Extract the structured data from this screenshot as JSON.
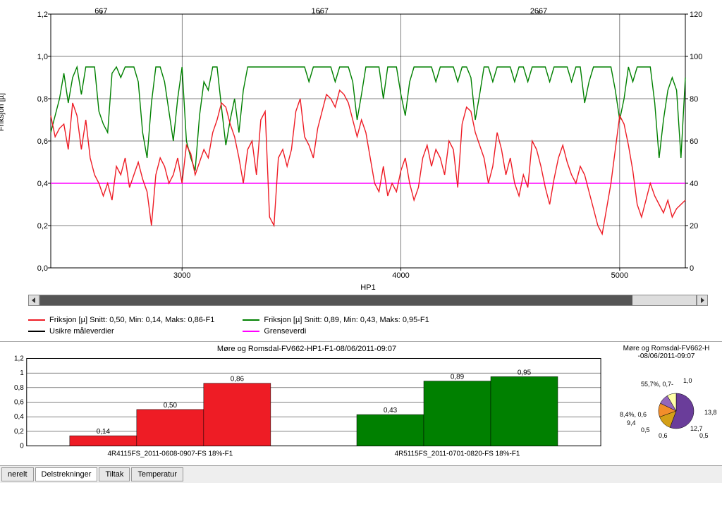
{
  "main_chart": {
    "y_left_label": "Friksjon [µ]",
    "y_left": {
      "min": 0.0,
      "max": 1.2,
      "ticks": [
        0.0,
        0.2,
        0.4,
        0.6,
        0.8,
        1.0,
        1.2
      ],
      "labels": [
        "0,0",
        "0,2",
        "0,4",
        "0,6",
        "0,8",
        "1,0",
        "1,2"
      ]
    },
    "y_right": {
      "min": 0,
      "max": 120,
      "ticks": [
        0,
        20,
        40,
        60,
        80,
        100,
        120
      ],
      "labels": [
        "0",
        "20",
        "40",
        "60",
        "80",
        "100",
        "120"
      ]
    },
    "x_bottom": {
      "min": 2400,
      "max": 5300,
      "ticks": [
        3000,
        4000,
        5000
      ],
      "labels": [
        "3000",
        "4000",
        "5000"
      ]
    },
    "x_top": {
      "ticks": [
        667,
        1667,
        2667
      ],
      "positions": [
        2630,
        3630,
        4630
      ],
      "labels": [
        "667",
        "1667",
        "2667"
      ]
    },
    "hp_label": "HP1",
    "threshold": {
      "value": 0.4,
      "color": "#ff00ff"
    },
    "colors": {
      "grid": "#000000",
      "red": "#ee1c25",
      "green": "#008000",
      "black": "#000000",
      "magenta": "#ff00ff",
      "bg": "#ffffff"
    },
    "red_series": [
      [
        2400,
        0.72
      ],
      [
        2420,
        0.62
      ],
      [
        2440,
        0.66
      ],
      [
        2460,
        0.68
      ],
      [
        2480,
        0.56
      ],
      [
        2500,
        0.78
      ],
      [
        2520,
        0.72
      ],
      [
        2540,
        0.56
      ],
      [
        2560,
        0.7
      ],
      [
        2580,
        0.52
      ],
      [
        2600,
        0.44
      ],
      [
        2620,
        0.4
      ],
      [
        2640,
        0.34
      ],
      [
        2660,
        0.4
      ],
      [
        2680,
        0.32
      ],
      [
        2700,
        0.48
      ],
      [
        2720,
        0.44
      ],
      [
        2740,
        0.52
      ],
      [
        2760,
        0.38
      ],
      [
        2780,
        0.44
      ],
      [
        2800,
        0.5
      ],
      [
        2820,
        0.42
      ],
      [
        2840,
        0.36
      ],
      [
        2860,
        0.2
      ],
      [
        2880,
        0.44
      ],
      [
        2900,
        0.52
      ],
      [
        2920,
        0.48
      ],
      [
        2940,
        0.4
      ],
      [
        2960,
        0.44
      ],
      [
        2980,
        0.52
      ],
      [
        3000,
        0.4
      ],
      [
        3020,
        0.58
      ],
      [
        3040,
        0.54
      ],
      [
        3060,
        0.44
      ],
      [
        3080,
        0.5
      ],
      [
        3100,
        0.56
      ],
      [
        3120,
        0.52
      ],
      [
        3140,
        0.64
      ],
      [
        3160,
        0.7
      ],
      [
        3180,
        0.78
      ],
      [
        3200,
        0.76
      ],
      [
        3220,
        0.68
      ],
      [
        3240,
        0.62
      ],
      [
        3260,
        0.52
      ],
      [
        3280,
        0.4
      ],
      [
        3300,
        0.56
      ],
      [
        3320,
        0.6
      ],
      [
        3340,
        0.44
      ],
      [
        3360,
        0.7
      ],
      [
        3380,
        0.74
      ],
      [
        3400,
        0.24
      ],
      [
        3420,
        0.2
      ],
      [
        3440,
        0.52
      ],
      [
        3460,
        0.56
      ],
      [
        3480,
        0.48
      ],
      [
        3500,
        0.56
      ],
      [
        3520,
        0.74
      ],
      [
        3540,
        0.8
      ],
      [
        3560,
        0.62
      ],
      [
        3580,
        0.58
      ],
      [
        3600,
        0.52
      ],
      [
        3620,
        0.66
      ],
      [
        3640,
        0.74
      ],
      [
        3660,
        0.82
      ],
      [
        3680,
        0.8
      ],
      [
        3700,
        0.76
      ],
      [
        3720,
        0.84
      ],
      [
        3740,
        0.82
      ],
      [
        3760,
        0.78
      ],
      [
        3780,
        0.7
      ],
      [
        3800,
        0.62
      ],
      [
        3820,
        0.7
      ],
      [
        3840,
        0.64
      ],
      [
        3860,
        0.52
      ],
      [
        3880,
        0.4
      ],
      [
        3900,
        0.36
      ],
      [
        3920,
        0.48
      ],
      [
        3940,
        0.34
      ],
      [
        3960,
        0.4
      ],
      [
        3980,
        0.36
      ],
      [
        4000,
        0.46
      ],
      [
        4020,
        0.52
      ],
      [
        4040,
        0.4
      ],
      [
        4060,
        0.32
      ],
      [
        4080,
        0.38
      ],
      [
        4100,
        0.52
      ],
      [
        4120,
        0.58
      ],
      [
        4140,
        0.48
      ],
      [
        4160,
        0.56
      ],
      [
        4180,
        0.52
      ],
      [
        4200,
        0.44
      ],
      [
        4220,
        0.6
      ],
      [
        4240,
        0.56
      ],
      [
        4260,
        0.38
      ],
      [
        4280,
        0.68
      ],
      [
        4300,
        0.76
      ],
      [
        4320,
        0.74
      ],
      [
        4340,
        0.64
      ],
      [
        4360,
        0.58
      ],
      [
        4380,
        0.52
      ],
      [
        4400,
        0.4
      ],
      [
        4420,
        0.48
      ],
      [
        4440,
        0.64
      ],
      [
        4460,
        0.56
      ],
      [
        4480,
        0.44
      ],
      [
        4500,
        0.52
      ],
      [
        4520,
        0.4
      ],
      [
        4540,
        0.34
      ],
      [
        4560,
        0.44
      ],
      [
        4580,
        0.38
      ],
      [
        4600,
        0.6
      ],
      [
        4620,
        0.56
      ],
      [
        4640,
        0.48
      ],
      [
        4660,
        0.38
      ],
      [
        4680,
        0.3
      ],
      [
        4700,
        0.42
      ],
      [
        4720,
        0.52
      ],
      [
        4740,
        0.58
      ],
      [
        4760,
        0.5
      ],
      [
        4780,
        0.44
      ],
      [
        4800,
        0.4
      ],
      [
        4820,
        0.48
      ],
      [
        4840,
        0.44
      ],
      [
        4860,
        0.36
      ],
      [
        4880,
        0.28
      ],
      [
        4900,
        0.2
      ],
      [
        4920,
        0.16
      ],
      [
        4940,
        0.28
      ],
      [
        4960,
        0.4
      ],
      [
        4980,
        0.56
      ],
      [
        5000,
        0.72
      ],
      [
        5020,
        0.68
      ],
      [
        5040,
        0.58
      ],
      [
        5060,
        0.46
      ],
      [
        5080,
        0.3
      ],
      [
        5100,
        0.24
      ],
      [
        5120,
        0.32
      ],
      [
        5140,
        0.4
      ],
      [
        5160,
        0.34
      ],
      [
        5180,
        0.3
      ],
      [
        5200,
        0.26
      ],
      [
        5220,
        0.32
      ],
      [
        5240,
        0.24
      ],
      [
        5260,
        0.28
      ],
      [
        5280,
        0.3
      ],
      [
        5300,
        0.32
      ]
    ],
    "green_series": [
      [
        2400,
        0.64
      ],
      [
        2420,
        0.72
      ],
      [
        2440,
        0.8
      ],
      [
        2460,
        0.92
      ],
      [
        2480,
        0.78
      ],
      [
        2500,
        0.9
      ],
      [
        2520,
        0.95
      ],
      [
        2540,
        0.82
      ],
      [
        2560,
        0.95
      ],
      [
        2580,
        0.95
      ],
      [
        2600,
        0.95
      ],
      [
        2620,
        0.74
      ],
      [
        2640,
        0.68
      ],
      [
        2660,
        0.64
      ],
      [
        2680,
        0.92
      ],
      [
        2700,
        0.95
      ],
      [
        2720,
        0.9
      ],
      [
        2740,
        0.95
      ],
      [
        2760,
        0.95
      ],
      [
        2780,
        0.95
      ],
      [
        2800,
        0.88
      ],
      [
        2820,
        0.64
      ],
      [
        2840,
        0.52
      ],
      [
        2860,
        0.78
      ],
      [
        2880,
        0.95
      ],
      [
        2900,
        0.95
      ],
      [
        2920,
        0.88
      ],
      [
        2940,
        0.74
      ],
      [
        2960,
        0.6
      ],
      [
        2980,
        0.8
      ],
      [
        3000,
        0.95
      ],
      [
        3020,
        0.6
      ],
      [
        3040,
        0.52
      ],
      [
        3060,
        0.46
      ],
      [
        3080,
        0.72
      ],
      [
        3100,
        0.88
      ],
      [
        3120,
        0.84
      ],
      [
        3140,
        0.95
      ],
      [
        3160,
        0.95
      ],
      [
        3180,
        0.76
      ],
      [
        3200,
        0.58
      ],
      [
        3220,
        0.7
      ],
      [
        3240,
        0.8
      ],
      [
        3260,
        0.64
      ],
      [
        3280,
        0.84
      ],
      [
        3300,
        0.95
      ],
      [
        3320,
        0.95
      ],
      [
        3340,
        0.95
      ],
      [
        3360,
        0.95
      ],
      [
        3380,
        0.95
      ],
      [
        3400,
        0.95
      ],
      [
        3420,
        0.95
      ],
      [
        3440,
        0.95
      ],
      [
        3460,
        0.95
      ],
      [
        3480,
        0.95
      ],
      [
        3500,
        0.95
      ],
      [
        3520,
        0.95
      ],
      [
        3540,
        0.95
      ],
      [
        3560,
        0.95
      ],
      [
        3580,
        0.88
      ],
      [
        3600,
        0.95
      ],
      [
        3620,
        0.95
      ],
      [
        3640,
        0.95
      ],
      [
        3660,
        0.95
      ],
      [
        3680,
        0.95
      ],
      [
        3700,
        0.88
      ],
      [
        3720,
        0.95
      ],
      [
        3740,
        0.95
      ],
      [
        3760,
        0.95
      ],
      [
        3780,
        0.88
      ],
      [
        3800,
        0.7
      ],
      [
        3820,
        0.82
      ],
      [
        3840,
        0.95
      ],
      [
        3860,
        0.95
      ],
      [
        3880,
        0.95
      ],
      [
        3900,
        0.95
      ],
      [
        3920,
        0.8
      ],
      [
        3940,
        0.95
      ],
      [
        3960,
        0.95
      ],
      [
        3980,
        0.95
      ],
      [
        4000,
        0.82
      ],
      [
        4020,
        0.72
      ],
      [
        4040,
        0.88
      ],
      [
        4060,
        0.95
      ],
      [
        4080,
        0.95
      ],
      [
        4100,
        0.95
      ],
      [
        4120,
        0.95
      ],
      [
        4140,
        0.95
      ],
      [
        4160,
        0.88
      ],
      [
        4180,
        0.95
      ],
      [
        4200,
        0.95
      ],
      [
        4220,
        0.95
      ],
      [
        4240,
        0.95
      ],
      [
        4260,
        0.88
      ],
      [
        4280,
        0.95
      ],
      [
        4300,
        0.95
      ],
      [
        4320,
        0.9
      ],
      [
        4340,
        0.7
      ],
      [
        4360,
        0.82
      ],
      [
        4380,
        0.95
      ],
      [
        4400,
        0.95
      ],
      [
        4420,
        0.88
      ],
      [
        4440,
        0.95
      ],
      [
        4460,
        0.95
      ],
      [
        4480,
        0.95
      ],
      [
        4500,
        0.95
      ],
      [
        4520,
        0.88
      ],
      [
        4540,
        0.95
      ],
      [
        4560,
        0.95
      ],
      [
        4580,
        0.88
      ],
      [
        4600,
        0.95
      ],
      [
        4620,
        0.95
      ],
      [
        4640,
        0.95
      ],
      [
        4660,
        0.95
      ],
      [
        4680,
        0.88
      ],
      [
        4700,
        0.95
      ],
      [
        4720,
        0.95
      ],
      [
        4740,
        0.95
      ],
      [
        4760,
        0.95
      ],
      [
        4780,
        0.88
      ],
      [
        4800,
        0.95
      ],
      [
        4820,
        0.95
      ],
      [
        4840,
        0.78
      ],
      [
        4860,
        0.88
      ],
      [
        4880,
        0.95
      ],
      [
        4900,
        0.95
      ],
      [
        4920,
        0.95
      ],
      [
        4940,
        0.95
      ],
      [
        4960,
        0.95
      ],
      [
        4980,
        0.84
      ],
      [
        5000,
        0.7
      ],
      [
        5020,
        0.8
      ],
      [
        5040,
        0.95
      ],
      [
        5060,
        0.88
      ],
      [
        5080,
        0.95
      ],
      [
        5100,
        0.95
      ],
      [
        5120,
        0.95
      ],
      [
        5140,
        0.95
      ],
      [
        5160,
        0.78
      ],
      [
        5180,
        0.52
      ],
      [
        5200,
        0.7
      ],
      [
        5220,
        0.84
      ],
      [
        5240,
        0.9
      ],
      [
        5260,
        0.84
      ],
      [
        5280,
        0.52
      ],
      [
        5300,
        0.9
      ]
    ]
  },
  "legend": {
    "items": [
      {
        "color": "#ee1c25",
        "label": "Friksjon [µ] Snitt: 0,50, Min: 0,14, Maks: 0,86-F1"
      },
      {
        "color": "#000000",
        "label": "Usikre måleverdier"
      },
      {
        "color": "#008000",
        "label": "Friksjon [µ] Snitt: 0,89, Min: 0,43, Maks: 0,95-F1"
      },
      {
        "color": "#ff00ff",
        "label": "Grenseverdi"
      }
    ]
  },
  "bar_chart": {
    "title": "Møre og Romsdal-FV662-HP1-F1-08/06/2011-09:07",
    "y": {
      "min": 0,
      "max": 1.2,
      "ticks": [
        0,
        0.2,
        0.4,
        0.6,
        0.8,
        1.0,
        1.2
      ],
      "labels": [
        "0",
        "0,2",
        "0,4",
        "0,6",
        "0,8",
        "1",
        "1,2"
      ]
    },
    "groups": [
      {
        "label": "4R4115FS_2011-0608-0907-FS 18%-F1",
        "color": "#ee1c25",
        "bars": [
          {
            "v": 0.14,
            "l": "0,14"
          },
          {
            "v": 0.5,
            "l": "0,50"
          },
          {
            "v": 0.86,
            "l": "0,86"
          }
        ]
      },
      {
        "label": "4R5115FS_2011-0701-0820-FS 18%-F1",
        "color": "#008000",
        "bars": [
          {
            "v": 0.43,
            "l": "0,43"
          },
          {
            "v": 0.89,
            "l": "0,89"
          },
          {
            "v": 0.95,
            "l": "0,95"
          }
        ]
      }
    ]
  },
  "pie_chart": {
    "title_line1": "Møre og Romsdal-FV662-H",
    "title_line2": "-08/06/2011-09:07",
    "slices": [
      {
        "color": "#6a3d9a",
        "pct": 55.7,
        "label": "55,7%, 0,7-"
      },
      {
        "color": "#d4a017",
        "pct": 13.8,
        "label": "13,8"
      },
      {
        "color": "#f28e2b",
        "pct": 12.7,
        "label": "12,7"
      },
      {
        "color": "#9467bd",
        "pct": 9.4,
        "label": "9,4"
      },
      {
        "color": "#ffffa8",
        "pct": 8.4,
        "label": "8,4%, 0,6"
      }
    ],
    "extra_labels": [
      "1,0",
      "0,6",
      "0,5",
      "0,5"
    ]
  },
  "tabs": [
    {
      "label": "nerelt",
      "active": false
    },
    {
      "label": "Delstrekninger",
      "active": true
    },
    {
      "label": "Tiltak",
      "active": false
    },
    {
      "label": "Temperatur",
      "active": false
    }
  ]
}
